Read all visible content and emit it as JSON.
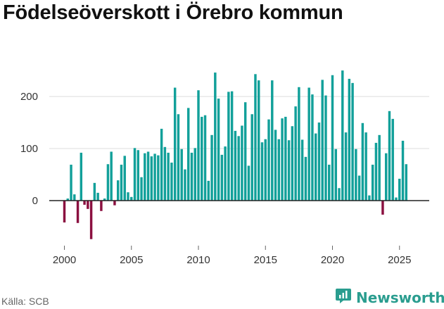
{
  "title": "Födelseöverskott i Örebro kommun",
  "source": "Källa: SCB",
  "brand": "Newsworthy",
  "colors": {
    "positive": "#12a09a",
    "negative": "#8b1040",
    "grid": "#dcdcdc",
    "axis": "#222222",
    "brand": "#2a9d8f"
  },
  "chart_data": {
    "type": "bar",
    "title": "Födelseöverskott i Örebro kommun",
    "xlabel": "",
    "ylabel": "",
    "grid": true,
    "ylim": [
      -75,
      260
    ],
    "xlim": [
      1998.7,
      2027
    ],
    "yticks": [
      0,
      100,
      200
    ],
    "xticks": [
      2000,
      2005,
      2010,
      2015,
      2020,
      2025
    ],
    "x": [
      2000.0,
      2000.25,
      2000.5,
      2000.75,
      2001.0,
      2001.25,
      2001.5,
      2001.75,
      2002.0,
      2002.25,
      2002.5,
      2002.75,
      2003.0,
      2003.25,
      2003.5,
      2003.75,
      2004.0,
      2004.25,
      2004.5,
      2004.75,
      2005.0,
      2005.25,
      2005.5,
      2005.75,
      2006.0,
      2006.25,
      2006.5,
      2006.75,
      2007.0,
      2007.25,
      2007.5,
      2007.75,
      2008.0,
      2008.25,
      2008.5,
      2008.75,
      2009.0,
      2009.25,
      2009.5,
      2009.75,
      2010.0,
      2010.25,
      2010.5,
      2010.75,
      2011.0,
      2011.25,
      2011.5,
      2011.75,
      2012.0,
      2012.25,
      2012.5,
      2012.75,
      2013.0,
      2013.25,
      2013.5,
      2013.75,
      2014.0,
      2014.25,
      2014.5,
      2014.75,
      2015.0,
      2015.25,
      2015.5,
      2015.75,
      2016.0,
      2016.25,
      2016.5,
      2016.75,
      2017.0,
      2017.25,
      2017.5,
      2017.75,
      2018.0,
      2018.25,
      2018.5,
      2018.75,
      2019.0,
      2019.25,
      2019.5,
      2019.75,
      2020.0,
      2020.25,
      2020.5,
      2020.75,
      2021.0,
      2021.25,
      2021.5,
      2021.75,
      2022.0,
      2022.25,
      2022.5,
      2022.75,
      2023.0,
      2023.25,
      2023.5,
      2023.75,
      2024.0,
      2024.25,
      2024.5,
      2024.75,
      2025.0,
      2025.25,
      2025.5,
      2025.75
    ],
    "values": [
      -42,
      4,
      69,
      12,
      -43,
      92,
      -8,
      -16,
      -74,
      34,
      15,
      -20,
      4,
      70,
      94,
      -9,
      39,
      69,
      86,
      16,
      7,
      101,
      97,
      45,
      91,
      94,
      85,
      90,
      87,
      138,
      103,
      92,
      73,
      217,
      166,
      99,
      60,
      178,
      92,
      101,
      212,
      161,
      164,
      38,
      126,
      246,
      196,
      88,
      104,
      209,
      210,
      134,
      124,
      144,
      189,
      67,
      166,
      243,
      231,
      112,
      118,
      156,
      231,
      136,
      118,
      158,
      161,
      116,
      143,
      181,
      218,
      117,
      84,
      217,
      204,
      129,
      150,
      232,
      202,
      69,
      241,
      99,
      24,
      250,
      131,
      234,
      226,
      99,
      48,
      149,
      131,
      10,
      69,
      111,
      126,
      -27,
      91,
      172,
      157,
      6,
      42,
      115,
      70,
      0
    ]
  }
}
